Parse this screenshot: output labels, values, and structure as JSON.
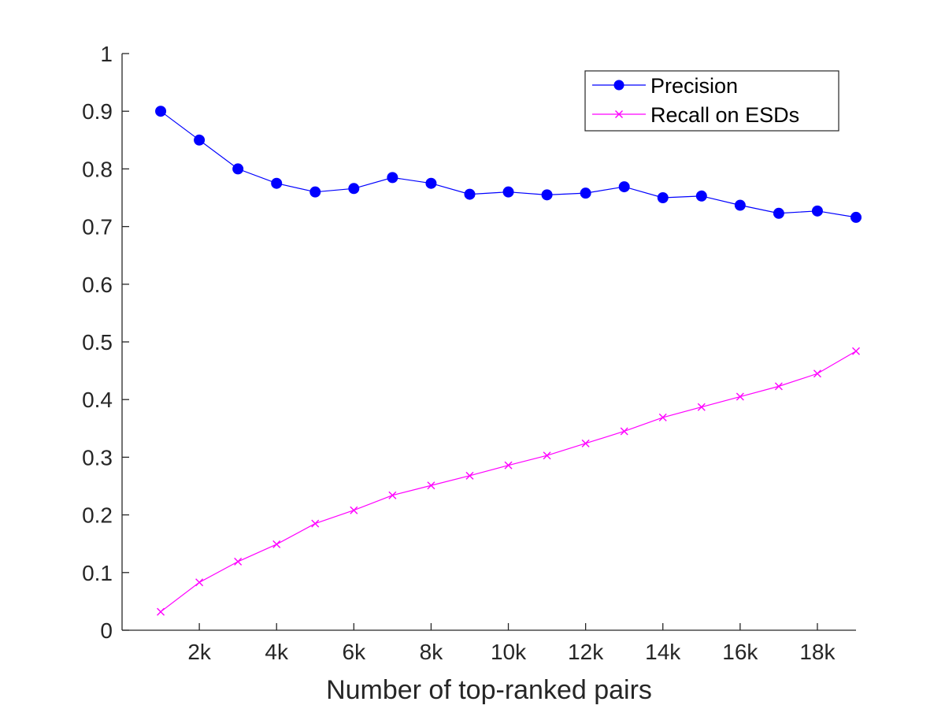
{
  "chart_data": {
    "type": "line",
    "title": "",
    "xlabel": "Number of top-ranked pairs",
    "ylabel": "",
    "xlim": [
      0,
      19000
    ],
    "ylim": [
      0,
      1
    ],
    "x_ticks": [
      2000,
      4000,
      6000,
      8000,
      10000,
      12000,
      14000,
      16000,
      18000
    ],
    "x_tick_labels": [
      "2k",
      "4k",
      "6k",
      "8k",
      "10k",
      "12k",
      "14k",
      "16k",
      "18k"
    ],
    "y_ticks": [
      0,
      0.1,
      0.2,
      0.3,
      0.4,
      0.5,
      0.6,
      0.7,
      0.8,
      0.9,
      1
    ],
    "y_tick_labels": [
      "0",
      "0.1",
      "0.2",
      "0.3",
      "0.4",
      "0.5",
      "0.6",
      "0.7",
      "0.8",
      "0.9",
      "1"
    ],
    "grid": false,
    "legend_position": "top-right",
    "x": [
      1000,
      2000,
      3000,
      4000,
      5000,
      6000,
      7000,
      8000,
      9000,
      10000,
      11000,
      12000,
      13000,
      14000,
      15000,
      16000,
      17000,
      18000,
      19000
    ],
    "series": [
      {
        "name": "Precision",
        "color": "#0000ff",
        "marker": "circle",
        "values": [
          0.9,
          0.85,
          0.8,
          0.775,
          0.76,
          0.766,
          0.785,
          0.775,
          0.756,
          0.76,
          0.755,
          0.758,
          0.769,
          0.75,
          0.753,
          0.737,
          0.723,
          0.727,
          0.716
        ]
      },
      {
        "name": "Recall on ESDs",
        "color": "#ff00ff",
        "marker": "x",
        "values": [
          0.032,
          0.083,
          0.119,
          0.149,
          0.185,
          0.208,
          0.234,
          0.251,
          0.268,
          0.286,
          0.303,
          0.324,
          0.345,
          0.369,
          0.387,
          0.405,
          0.423,
          0.445,
          0.484
        ]
      }
    ]
  }
}
